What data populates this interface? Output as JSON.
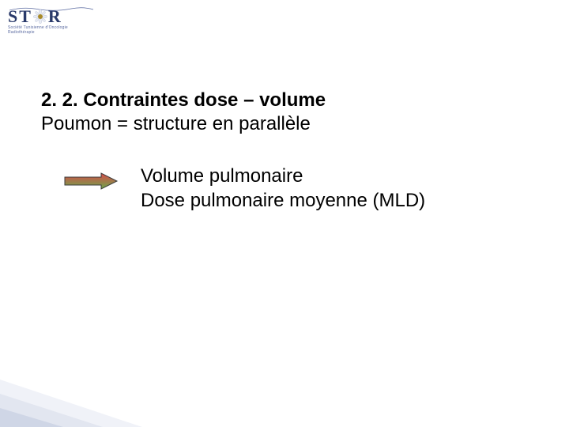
{
  "logo": {
    "letters_before": "ST",
    "letters_after": "R",
    "subtitle": "Société Tunisienne d'Oncologie Radiothérapie",
    "text_color": "#2a3a6a",
    "flower_center": "#a88a2a",
    "petal_color": "#e8ecf4"
  },
  "heading": "2. 2. Contraintes dose – volume",
  "subheading": "Poumon = structure en parallèle",
  "bullets": {
    "line1": "Volume pulmonaire",
    "line2": "Dose pulmonaire moyenne (MLD)"
  },
  "arrow": {
    "fill_top": "#d94a4a",
    "fill_bottom": "#6aa84a",
    "stroke": "#3a3a3a",
    "width": 70,
    "height": 24
  },
  "corner": {
    "c1": "#cfd6e6",
    "c2": "#e2e6f0",
    "c3": "#f0f2f8"
  },
  "typography": {
    "heading_fontsize": 24,
    "body_fontsize": 24,
    "text_color": "#000000"
  },
  "background_color": "#ffffff"
}
